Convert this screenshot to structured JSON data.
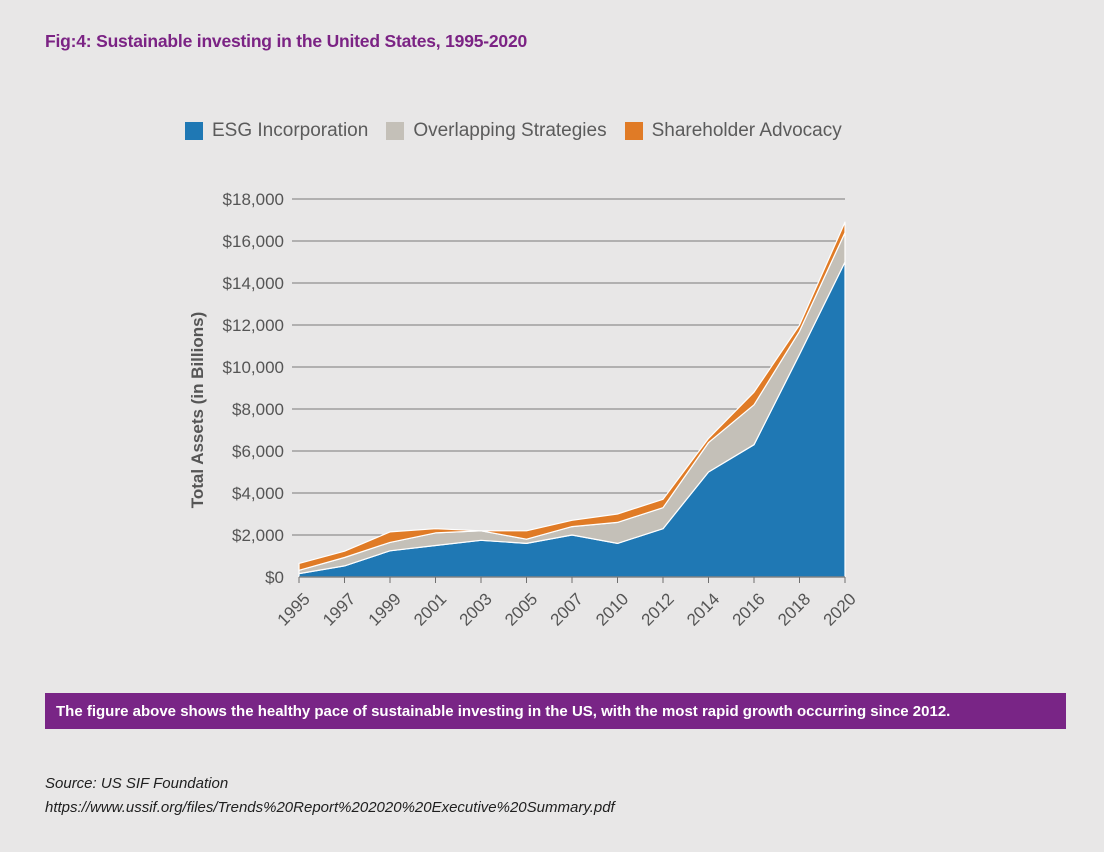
{
  "figure_title": "Fig:4: Sustainable investing in the United States, 1995-2020",
  "caption": "The figure above shows the healthy pace of sustainable investing in the US, with the most rapid growth occurring since 2012.",
  "source_line": "Source: US SIF Foundation",
  "source_url": "https://www.ussif.org/files/Trends%20Report%202020%20Executive%20Summary.pdf",
  "colors": {
    "esg": "#1f78b4",
    "overlap": "#c4c0b8",
    "advocacy": "#e07b26",
    "caption_bg": "#792586",
    "title": "#7b2384"
  },
  "chart_data": {
    "type": "area",
    "stacked": true,
    "title": "",
    "xlabel": "",
    "ylabel": "Total Assets (in Billions)",
    "ylim": [
      0,
      18000
    ],
    "yticks": [
      0,
      2000,
      4000,
      6000,
      8000,
      10000,
      12000,
      14000,
      16000,
      18000
    ],
    "ytick_labels": [
      "$0",
      "$2,000",
      "$4,000",
      "$6,000",
      "$8,000",
      "$10,000",
      "$12,000",
      "$14,000",
      "$16,000",
      "$18,000"
    ],
    "categories": [
      "1995",
      "1997",
      "1999",
      "2001",
      "2003",
      "2005",
      "2007",
      "2010",
      "2012",
      "2014",
      "2016",
      "2018",
      "2020"
    ],
    "grid": true,
    "legend_position": "top",
    "series": [
      {
        "name": "ESG Incorporation",
        "color_key": "esg",
        "values": [
          160,
          530,
          1250,
          1500,
          1750,
          1600,
          2000,
          1600,
          2300,
          5000,
          6300,
          10600,
          15000
        ]
      },
      {
        "name": "Overlapping Strategies",
        "color_key": "overlap",
        "values": [
          160,
          400,
          400,
          600,
          450,
          200,
          400,
          1000,
          1000,
          1400,
          1900,
          1100,
          1400
        ]
      },
      {
        "name": "Shareholder Advocacy",
        "color_key": "advocacy",
        "values": [
          330,
          300,
          500,
          200,
          0,
          400,
          300,
          400,
          400,
          200,
          600,
          300,
          500
        ]
      }
    ]
  }
}
